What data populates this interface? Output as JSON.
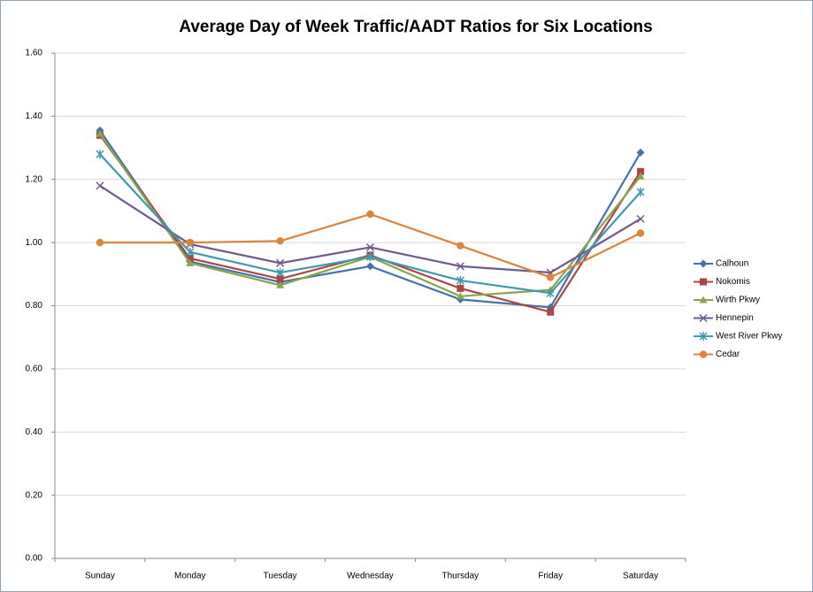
{
  "chart_data": {
    "type": "line",
    "title": "Average Day of Week Traffic/AADT Ratios for Six Locations",
    "categories": [
      "Sunday",
      "Monday",
      "Tuesday",
      "Wednesday",
      "Thursday",
      "Friday",
      "Saturday"
    ],
    "series": [
      {
        "name": "Calhoun",
        "color": "#4572a7",
        "marker": "diamond",
        "values": [
          1.355,
          0.94,
          0.875,
          0.925,
          0.82,
          0.795,
          1.285
        ]
      },
      {
        "name": "Nokomis",
        "color": "#aa4643",
        "marker": "square",
        "values": [
          1.34,
          0.95,
          0.885,
          0.96,
          0.855,
          0.78,
          1.225
        ]
      },
      {
        "name": "Wirth Pkwy",
        "color": "#89a54e",
        "marker": "triangle",
        "values": [
          1.345,
          0.935,
          0.865,
          0.955,
          0.83,
          0.85,
          1.21
        ]
      },
      {
        "name": "Hennepin",
        "color": "#71588f",
        "marker": "x",
        "values": [
          1.18,
          0.995,
          0.935,
          0.985,
          0.925,
          0.905,
          1.075
        ]
      },
      {
        "name": "West River Pkwy",
        "color": "#4198af",
        "marker": "star",
        "values": [
          1.28,
          0.97,
          0.905,
          0.955,
          0.88,
          0.84,
          1.16
        ]
      },
      {
        "name": "Cedar",
        "color": "#db843d",
        "marker": "circle",
        "values": [
          1.0,
          1.0,
          1.005,
          1.09,
          0.99,
          0.89,
          1.03
        ]
      }
    ],
    "ylim": [
      0,
      1.6
    ],
    "yticks": [
      {
        "value": 0,
        "label": "0.00"
      },
      {
        "value": 0.2,
        "label": "0.20"
      },
      {
        "value": 0.4,
        "label": "0.40"
      },
      {
        "value": 0.6,
        "label": "0.60"
      },
      {
        "value": 0.8,
        "label": "0.80"
      },
      {
        "value": 1.0,
        "label": "1.00"
      },
      {
        "value": 1.2,
        "label": "1.20"
      },
      {
        "value": 1.4,
        "label": "1.40"
      },
      {
        "value": 1.6,
        "label": "1.60"
      }
    ],
    "grid": true,
    "legend": "right"
  }
}
